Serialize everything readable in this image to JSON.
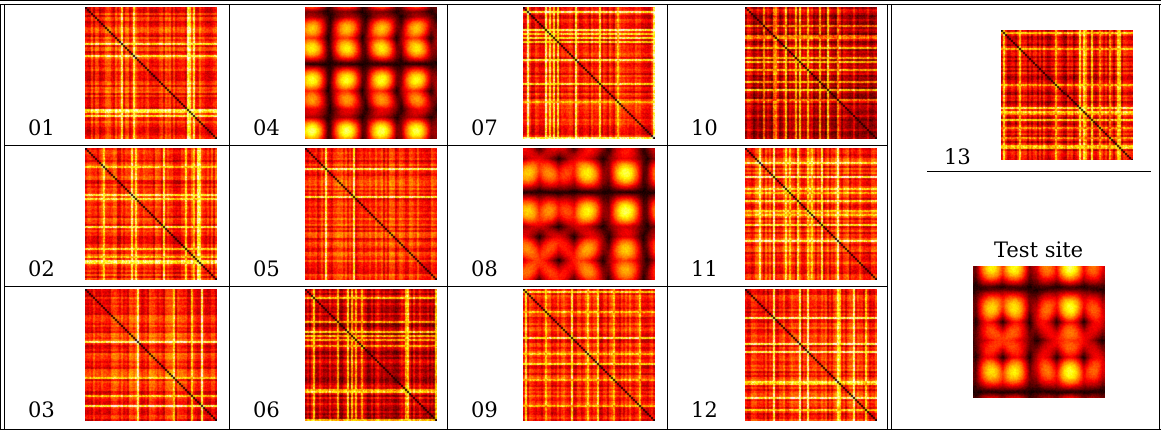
{
  "figure": {
    "site_labels": [
      "01",
      "02",
      "03",
      "04",
      "05",
      "06",
      "07",
      "08",
      "09",
      "10",
      "11",
      "12"
    ],
    "extra_site_label": "13",
    "test_site_title": "Test site"
  }
}
